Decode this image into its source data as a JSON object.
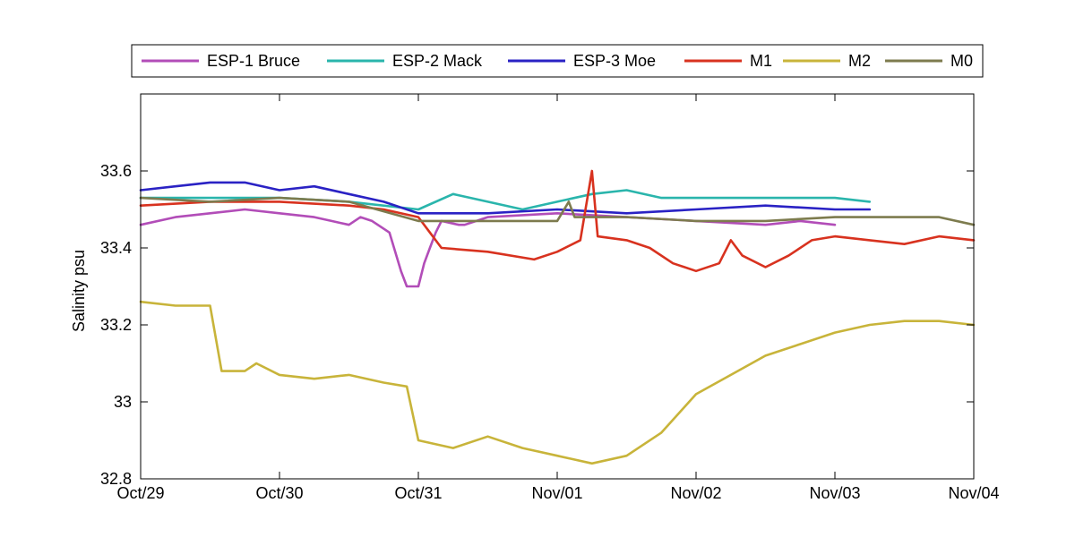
{
  "chart_data": {
    "type": "line",
    "title": "",
    "xlabel": "",
    "ylabel": "Salinity psu",
    "x_axis_type": "date",
    "xlim": [
      "Oct/29",
      "Nov/04"
    ],
    "ylim": [
      32.8,
      33.8
    ],
    "x_ticks": [
      "Oct/29",
      "Oct/30",
      "Oct/31",
      "Nov/01",
      "Nov/02",
      "Nov/03",
      "Nov/04"
    ],
    "y_ticks": [
      32.8,
      33,
      33.2,
      33.4,
      33.6
    ],
    "y_tick_labels": [
      "32.8",
      "33",
      "33.2",
      "33.4",
      "33.6"
    ],
    "grid": false,
    "legend_position": "top-outside",
    "series": [
      {
        "name": "ESP-1 Bruce",
        "color": "#B24DB8",
        "points": [
          [
            "Oct/29 00:00",
            33.46
          ],
          [
            "Oct/29 06:00",
            33.48
          ],
          [
            "Oct/29 12:00",
            33.49
          ],
          [
            "Oct/29 18:00",
            33.5
          ],
          [
            "Oct/30 00:00",
            33.49
          ],
          [
            "Oct/30 06:00",
            33.48
          ],
          [
            "Oct/30 09:00",
            33.47
          ],
          [
            "Oct/30 12:00",
            33.46
          ],
          [
            "Oct/30 14:00",
            33.48
          ],
          [
            "Oct/30 16:00",
            33.47
          ],
          [
            "Oct/30 19:00",
            33.44
          ],
          [
            "Oct/30 21:00",
            33.34
          ],
          [
            "Oct/30 22:00",
            33.3
          ],
          [
            "Oct/31 00:00",
            33.3
          ],
          [
            "Oct/31 01:00",
            33.36
          ],
          [
            "Oct/31 02:00",
            33.4
          ],
          [
            "Oct/31 03:00",
            33.44
          ],
          [
            "Oct/31 04:00",
            33.47
          ],
          [
            "Oct/31 07:00",
            33.46
          ],
          [
            "Oct/31 08:00",
            33.46
          ],
          [
            "Oct/31 12:00",
            33.48
          ],
          [
            "Nov/01 00:00",
            33.49
          ],
          [
            "Nov/01 12:00",
            33.48
          ],
          [
            "Nov/02 00:00",
            33.47
          ],
          [
            "Nov/02 12:00",
            33.46
          ],
          [
            "Nov/02 18:00",
            33.47
          ],
          [
            "Nov/03 00:00",
            33.46
          ]
        ]
      },
      {
        "name": "ESP-2 Mack",
        "color": "#2AB5AC",
        "points": [
          [
            "Oct/29 00:00",
            33.53
          ],
          [
            "Oct/29 12:00",
            33.53
          ],
          [
            "Oct/30 00:00",
            33.53
          ],
          [
            "Oct/30 12:00",
            33.52
          ],
          [
            "Oct/31 00:00",
            33.5
          ],
          [
            "Oct/31 06:00",
            33.54
          ],
          [
            "Oct/31 12:00",
            33.52
          ],
          [
            "Oct/31 18:00",
            33.5
          ],
          [
            "Nov/01 00:00",
            33.52
          ],
          [
            "Nov/01 06:00",
            33.54
          ],
          [
            "Nov/01 12:00",
            33.55
          ],
          [
            "Nov/01 18:00",
            33.53
          ],
          [
            "Nov/02 00:00",
            33.53
          ],
          [
            "Nov/02 06:00",
            33.53
          ],
          [
            "Nov/02 12:00",
            33.53
          ],
          [
            "Nov/02 18:00",
            33.53
          ],
          [
            "Nov/03 00:00",
            33.53
          ],
          [
            "Nov/03 06:00",
            33.52
          ]
        ]
      },
      {
        "name": "ESP-3 Moe",
        "color": "#2A22C4",
        "points": [
          [
            "Oct/29 00:00",
            33.55
          ],
          [
            "Oct/29 06:00",
            33.56
          ],
          [
            "Oct/29 12:00",
            33.57
          ],
          [
            "Oct/29 18:00",
            33.57
          ],
          [
            "Oct/30 00:00",
            33.55
          ],
          [
            "Oct/30 06:00",
            33.56
          ],
          [
            "Oct/30 12:00",
            33.54
          ],
          [
            "Oct/30 18:00",
            33.52
          ],
          [
            "Oct/31 00:00",
            33.49
          ],
          [
            "Oct/31 12:00",
            33.49
          ],
          [
            "Nov/01 00:00",
            33.5
          ],
          [
            "Nov/01 12:00",
            33.49
          ],
          [
            "Nov/02 00:00",
            33.5
          ],
          [
            "Nov/02 12:00",
            33.51
          ],
          [
            "Nov/03 00:00",
            33.5
          ],
          [
            "Nov/03 06:00",
            33.5
          ]
        ]
      },
      {
        "name": "M1",
        "color": "#D8321F",
        "points": [
          [
            "Oct/29 00:00",
            33.51
          ],
          [
            "Oct/29 12:00",
            33.52
          ],
          [
            "Oct/30 00:00",
            33.52
          ],
          [
            "Oct/30 12:00",
            33.51
          ],
          [
            "Oct/30 18:00",
            33.5
          ],
          [
            "Oct/31 00:00",
            33.48
          ],
          [
            "Oct/31 02:00",
            33.44
          ],
          [
            "Oct/31 04:00",
            33.4
          ],
          [
            "Oct/31 12:00",
            33.39
          ],
          [
            "Oct/31 20:00",
            33.37
          ],
          [
            "Nov/01 00:00",
            33.39
          ],
          [
            "Nov/01 04:00",
            33.42
          ],
          [
            "Nov/01 06:00",
            33.6
          ],
          [
            "Nov/01 07:00",
            33.43
          ],
          [
            "Nov/01 12:00",
            33.42
          ],
          [
            "Nov/01 16:00",
            33.4
          ],
          [
            "Nov/01 20:00",
            33.36
          ],
          [
            "Nov/02 00:00",
            33.34
          ],
          [
            "Nov/02 04:00",
            33.36
          ],
          [
            "Nov/02 06:00",
            33.42
          ],
          [
            "Nov/02 08:00",
            33.38
          ],
          [
            "Nov/02 12:00",
            33.35
          ],
          [
            "Nov/02 16:00",
            33.38
          ],
          [
            "Nov/02 20:00",
            33.42
          ],
          [
            "Nov/03 00:00",
            33.43
          ],
          [
            "Nov/03 06:00",
            33.42
          ],
          [
            "Nov/03 12:00",
            33.41
          ],
          [
            "Nov/03 18:00",
            33.43
          ],
          [
            "Nov/04 00:00",
            33.42
          ]
        ]
      },
      {
        "name": "M2",
        "color": "#C8B43A",
        "points": [
          [
            "Oct/29 00:00",
            33.26
          ],
          [
            "Oct/29 06:00",
            33.25
          ],
          [
            "Oct/29 12:00",
            33.25
          ],
          [
            "Oct/29 14:00",
            33.08
          ],
          [
            "Oct/29 18:00",
            33.08
          ],
          [
            "Oct/29 20:00",
            33.1
          ],
          [
            "Oct/30 00:00",
            33.07
          ],
          [
            "Oct/30 06:00",
            33.06
          ],
          [
            "Oct/30 12:00",
            33.07
          ],
          [
            "Oct/30 18:00",
            33.05
          ],
          [
            "Oct/30 22:00",
            33.04
          ],
          [
            "Oct/31 00:00",
            32.9
          ],
          [
            "Oct/31 06:00",
            32.88
          ],
          [
            "Oct/31 12:00",
            32.91
          ],
          [
            "Oct/31 18:00",
            32.88
          ],
          [
            "Nov/01 00:00",
            32.86
          ],
          [
            "Nov/01 06:00",
            32.84
          ],
          [
            "Nov/01 12:00",
            32.86
          ],
          [
            "Nov/01 18:00",
            32.92
          ],
          [
            "Nov/02 00:00",
            33.02
          ],
          [
            "Nov/02 06:00",
            33.07
          ],
          [
            "Nov/02 12:00",
            33.12
          ],
          [
            "Nov/02 18:00",
            33.15
          ],
          [
            "Nov/03 00:00",
            33.18
          ],
          [
            "Nov/03 06:00",
            33.2
          ],
          [
            "Nov/03 12:00",
            33.21
          ],
          [
            "Nov/03 18:00",
            33.21
          ],
          [
            "Nov/04 00:00",
            33.2
          ]
        ]
      },
      {
        "name": "M0",
        "color": "#7D7B4E",
        "points": [
          [
            "Oct/29 00:00",
            33.53
          ],
          [
            "Oct/29 12:00",
            33.52
          ],
          [
            "Oct/30 00:00",
            33.53
          ],
          [
            "Oct/30 12:00",
            33.52
          ],
          [
            "Oct/31 00:00",
            33.47
          ],
          [
            "Oct/31 12:00",
            33.47
          ],
          [
            "Nov/01 00:00",
            33.47
          ],
          [
            "Nov/01 02:00",
            33.52
          ],
          [
            "Nov/01 03:00",
            33.48
          ],
          [
            "Nov/01 12:00",
            33.48
          ],
          [
            "Nov/02 00:00",
            33.47
          ],
          [
            "Nov/02 12:00",
            33.47
          ],
          [
            "Nov/03 00:00",
            33.48
          ],
          [
            "Nov/03 12:00",
            33.48
          ],
          [
            "Nov/03 18:00",
            33.48
          ],
          [
            "Nov/04 00:00",
            33.46
          ]
        ]
      }
    ]
  }
}
